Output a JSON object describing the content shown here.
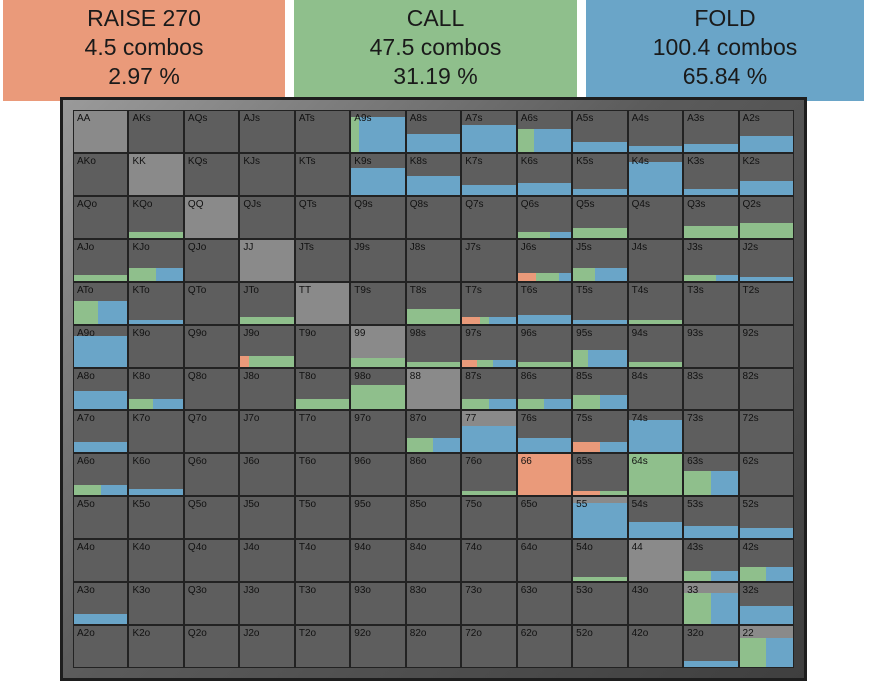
{
  "actions": [
    {
      "name": "raise",
      "label": "RAISE 270",
      "combos": "4.5 combos",
      "pct": "2.97 %",
      "color": "#ea9a7a"
    },
    {
      "name": "call",
      "label": "CALL",
      "combos": "47.5 combos",
      "pct": "31.19 %",
      "color": "#8fbf8c"
    },
    {
      "name": "fold",
      "label": "FOLD",
      "combos": "100.4 combos",
      "pct": "65.84 %",
      "color": "#6aa5c8"
    }
  ],
  "colors": {
    "raise": "#ea9a7a",
    "call": "#8fbf8c",
    "fold": "#6aa5c8",
    "empty": "#5e5e5e",
    "pair": "#8a8a8a"
  },
  "grid": {
    "rows": [
      [
        "AA",
        "AKs",
        "AQs",
        "AJs",
        "ATs",
        "A9s",
        "A8s",
        "A7s",
        "A6s",
        "A5s",
        "A4s",
        "A3s",
        "A2s"
      ],
      [
        "AKo",
        "KK",
        "KQs",
        "KJs",
        "KTs",
        "K9s",
        "K8s",
        "K7s",
        "K6s",
        "K5s",
        "K4s",
        "K3s",
        "K2s"
      ],
      [
        "AQo",
        "KQo",
        "QQ",
        "QJs",
        "QTs",
        "Q9s",
        "Q8s",
        "Q7s",
        "Q6s",
        "Q5s",
        "Q4s",
        "Q3s",
        "Q2s"
      ],
      [
        "AJo",
        "KJo",
        "QJo",
        "JJ",
        "JTs",
        "J9s",
        "J8s",
        "J7s",
        "J6s",
        "J5s",
        "J4s",
        "J3s",
        "J2s"
      ],
      [
        "ATo",
        "KTo",
        "QTo",
        "JTo",
        "TT",
        "T9s",
        "T8s",
        "T7s",
        "T6s",
        "T5s",
        "T4s",
        "T3s",
        "T2s"
      ],
      [
        "A9o",
        "K9o",
        "Q9o",
        "J9o",
        "T9o",
        "99",
        "98s",
        "97s",
        "96s",
        "95s",
        "94s",
        "93s",
        "92s"
      ],
      [
        "A8o",
        "K8o",
        "Q8o",
        "J8o",
        "T8o",
        "98o",
        "88",
        "87s",
        "86s",
        "85s",
        "84s",
        "83s",
        "82s"
      ],
      [
        "A7o",
        "K7o",
        "Q7o",
        "J7o",
        "T7o",
        "97o",
        "87o",
        "77",
        "76s",
        "75s",
        "74s",
        "73s",
        "72s"
      ],
      [
        "A6o",
        "K6o",
        "Q6o",
        "J6o",
        "T6o",
        "96o",
        "86o",
        "76o",
        "66",
        "65s",
        "64s",
        "63s",
        "62s"
      ],
      [
        "A5o",
        "K5o",
        "Q5o",
        "J5o",
        "T5o",
        "95o",
        "85o",
        "75o",
        "65o",
        "55",
        "54s",
        "53s",
        "52s"
      ],
      [
        "A4o",
        "K4o",
        "Q4o",
        "J4o",
        "T4o",
        "94o",
        "84o",
        "74o",
        "64o",
        "54o",
        "44",
        "43s",
        "42s"
      ],
      [
        "A3o",
        "K3o",
        "Q3o",
        "J3o",
        "T3o",
        "93o",
        "83o",
        "73o",
        "63o",
        "53o",
        "43o",
        "33",
        "32s"
      ],
      [
        "A2o",
        "K2o",
        "Q2o",
        "J2o",
        "T2o",
        "92o",
        "82o",
        "72o",
        "62o",
        "52o",
        "42o",
        "32o",
        "22"
      ]
    ],
    "frequencies": {
      "A9s": [
        0,
        0.15,
        0.85
      ],
      "A8s": [
        0,
        0,
        0.45
      ],
      "A7s": [
        0,
        0,
        0.65
      ],
      "A6s": [
        0,
        0.25,
        0.55
      ],
      "A5s": [
        0,
        0,
        0.25
      ],
      "A4s": [
        0,
        0,
        0.15
      ],
      "A3s": [
        0,
        0,
        0.2
      ],
      "A2s": [
        0,
        0,
        0.4
      ],
      "K9s": [
        0,
        0,
        0.65
      ],
      "K8s": [
        0,
        0,
        0.45
      ],
      "K7s": [
        0,
        0,
        0.25
      ],
      "K6s": [
        0,
        0,
        0.3
      ],
      "K5s": [
        0,
        0,
        0.15
      ],
      "K4s": [
        0,
        0,
        0.8
      ],
      "K3s": [
        0,
        0,
        0.15
      ],
      "K2s": [
        0,
        0,
        0.35
      ],
      "KQo": [
        0,
        0.15,
        0
      ],
      "Q6s": [
        0,
        0.15,
        0.1
      ],
      "Q5s": [
        0,
        0.25,
        0
      ],
      "Q3s": [
        0,
        0.3,
        0
      ],
      "Q2s": [
        0,
        0.35,
        0
      ],
      "AJo": [
        0,
        0.15,
        0
      ],
      "KJo": [
        0,
        0.3,
        0.3
      ],
      "J6s": [
        0.15,
        0.2,
        0.1
      ],
      "J5s": [
        0,
        0.2,
        0.3
      ],
      "J3s": [
        0,
        0.15,
        0.1
      ],
      "J2s": [
        0,
        0,
        0.1
      ],
      "ATo": [
        0,
        0.45,
        0.55
      ],
      "KTo": [
        0,
        0,
        0.1
      ],
      "JTo": [
        0,
        0.15,
        0
      ],
      "T8s": [
        0,
        0.35,
        0
      ],
      "T7s": [
        0.1,
        0.05,
        0.15
      ],
      "T6s": [
        0,
        0,
        0.2
      ],
      "T5s": [
        0,
        0,
        0.1
      ],
      "T4s": [
        0,
        0.1,
        0
      ],
      "A9o": [
        0,
        0,
        0.75
      ],
      "J9o": [
        0.05,
        0.25,
        0
      ],
      "99": [
        0,
        0.2,
        0
      ],
      "98s": [
        0,
        0.1,
        0
      ],
      "97s": [
        0.1,
        0.1,
        0.15
      ],
      "96s": [
        0,
        0.1,
        0
      ],
      "95s": [
        0,
        0.15,
        0.4
      ],
      "94s": [
        0,
        0.1,
        0
      ],
      "A8o": [
        0,
        0,
        0.45
      ],
      "K8o": [
        0,
        0.2,
        0.25
      ],
      "T8o": [
        0,
        0.25,
        0
      ],
      "98o": [
        0,
        0.6,
        0
      ],
      "87s": [
        0,
        0.25,
        0.25
      ],
      "86s": [
        0,
        0.25,
        0.25
      ],
      "85s": [
        0,
        0.35,
        0.35
      ],
      "A7o": [
        0,
        0,
        0.25
      ],
      "87o": [
        0,
        0.35,
        0.35
      ],
      "77": [
        0,
        0,
        0.65
      ],
      "76s": [
        0,
        0,
        0.35
      ],
      "75s": [
        0.25,
        0,
        0.25
      ],
      "74s": [
        0,
        0,
        0.8
      ],
      "A6o": [
        0,
        0.25,
        0.25
      ],
      "K6o": [
        0,
        0,
        0.15
      ],
      "76o": [
        0,
        0.1,
        0
      ],
      "66": [
        1,
        0,
        0
      ],
      "65s": [
        0.1,
        0.1,
        0
      ],
      "64s": [
        0,
        1,
        0
      ],
      "63s": [
        0,
        0.6,
        0.6
      ],
      "55": [
        0,
        0,
        0.85
      ],
      "54s": [
        0,
        0,
        0.4
      ],
      "53s": [
        0,
        0,
        0.3
      ],
      "52s": [
        0,
        0,
        0.25
      ],
      "54o": [
        0,
        0.1,
        0
      ],
      "43s": [
        0,
        0.25,
        0.25
      ],
      "42s": [
        0,
        0.35,
        0.35
      ],
      "A3o": [
        0,
        0,
        0.25
      ],
      "33": [
        0,
        0.75,
        0.75
      ],
      "32s": [
        0,
        0,
        0.45
      ],
      "32o": [
        0,
        0,
        0.15
      ],
      "22": [
        0,
        0.7,
        0.7
      ]
    }
  }
}
